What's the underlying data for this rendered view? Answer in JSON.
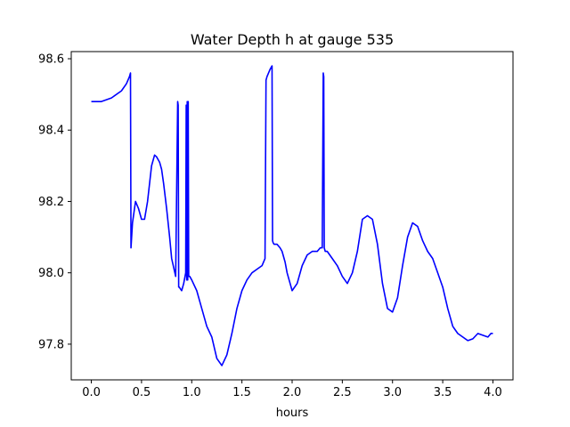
{
  "chart_data": {
    "type": "line",
    "title": "Water Depth h at gauge 535",
    "xlabel": "hours",
    "ylabel": "",
    "xlim": [
      -0.2,
      4.2
    ],
    "ylim": [
      97.7,
      98.62
    ],
    "xticks": [
      0.0,
      0.5,
      1.0,
      1.5,
      2.0,
      2.5,
      3.0,
      3.5,
      4.0
    ],
    "xtick_labels": [
      "0.0",
      "0.5",
      "1.0",
      "1.5",
      "2.0",
      "2.5",
      "3.0",
      "3.5",
      "4.0"
    ],
    "yticks": [
      97.8,
      98.0,
      98.2,
      98.4,
      98.6
    ],
    "ytick_labels": [
      "97.8",
      "98.0",
      "98.2",
      "98.4",
      "98.6"
    ],
    "grid": false,
    "colors": {
      "line": "#0000ff",
      "axes": "#000000",
      "background": "#ffffff"
    },
    "series": [
      {
        "x": [
          0.0,
          0.1,
          0.2,
          0.3,
          0.35,
          0.38,
          0.39,
          0.395,
          0.41,
          0.44,
          0.47,
          0.5,
          0.53,
          0.56,
          0.6,
          0.63,
          0.65,
          0.66,
          0.68,
          0.7,
          0.72,
          0.75,
          0.78,
          0.8,
          0.84,
          0.86,
          0.865,
          0.87,
          0.872,
          0.875,
          0.9,
          0.92,
          0.94,
          0.945,
          0.95,
          0.955,
          0.96,
          0.965,
          0.97,
          0.975,
          0.98,
          1.0,
          1.05,
          1.1,
          1.15,
          1.2,
          1.25,
          1.3,
          1.35,
          1.4,
          1.45,
          1.5,
          1.55,
          1.6,
          1.65,
          1.7,
          1.73,
          1.74,
          1.75,
          1.78,
          1.8,
          1.805,
          1.81,
          1.82,
          1.85,
          1.88,
          1.9,
          1.93,
          1.95,
          1.98,
          2.0,
          2.05,
          2.1,
          2.15,
          2.2,
          2.25,
          2.28,
          2.3,
          2.31,
          2.315,
          2.32,
          2.33,
          2.35,
          2.4,
          2.45,
          2.5,
          2.55,
          2.6,
          2.65,
          2.7,
          2.75,
          2.8,
          2.85,
          2.9,
          2.95,
          3.0,
          3.05,
          3.1,
          3.15,
          3.2,
          3.25,
          3.3,
          3.35,
          3.4,
          3.45,
          3.5,
          3.55,
          3.6,
          3.65,
          3.7,
          3.75,
          3.8,
          3.85,
          3.9,
          3.95,
          3.98,
          4.0
        ],
        "y": [
          98.48,
          98.48,
          98.49,
          98.51,
          98.53,
          98.55,
          98.56,
          98.07,
          98.14,
          98.2,
          98.18,
          98.15,
          98.15,
          98.2,
          98.3,
          98.33,
          98.325,
          98.32,
          98.31,
          98.29,
          98.25,
          98.18,
          98.1,
          98.04,
          97.99,
          98.48,
          98.47,
          97.96,
          97.96,
          97.96,
          97.95,
          97.97,
          98.0,
          98.47,
          97.98,
          98.48,
          97.98,
          98.48,
          97.99,
          97.99,
          97.99,
          97.98,
          97.95,
          97.9,
          97.85,
          97.82,
          97.76,
          97.74,
          97.77,
          97.83,
          97.9,
          97.95,
          97.98,
          98.0,
          98.01,
          98.02,
          98.04,
          98.54,
          98.55,
          98.57,
          98.58,
          98.09,
          98.085,
          98.08,
          98.08,
          98.07,
          98.06,
          98.03,
          98.0,
          97.97,
          97.95,
          97.97,
          98.02,
          98.05,
          98.06,
          98.06,
          98.07,
          98.07,
          98.56,
          98.55,
          98.07,
          98.06,
          98.06,
          98.04,
          98.02,
          97.99,
          97.97,
          98.0,
          98.06,
          98.15,
          98.16,
          98.15,
          98.08,
          97.97,
          97.9,
          97.89,
          97.93,
          98.02,
          98.1,
          98.14,
          98.13,
          98.09,
          98.06,
          98.04,
          98.0,
          97.96,
          97.9,
          97.85,
          97.83,
          97.82,
          97.81,
          97.815,
          97.83,
          97.825,
          97.82,
          97.83,
          97.83
        ]
      }
    ]
  }
}
